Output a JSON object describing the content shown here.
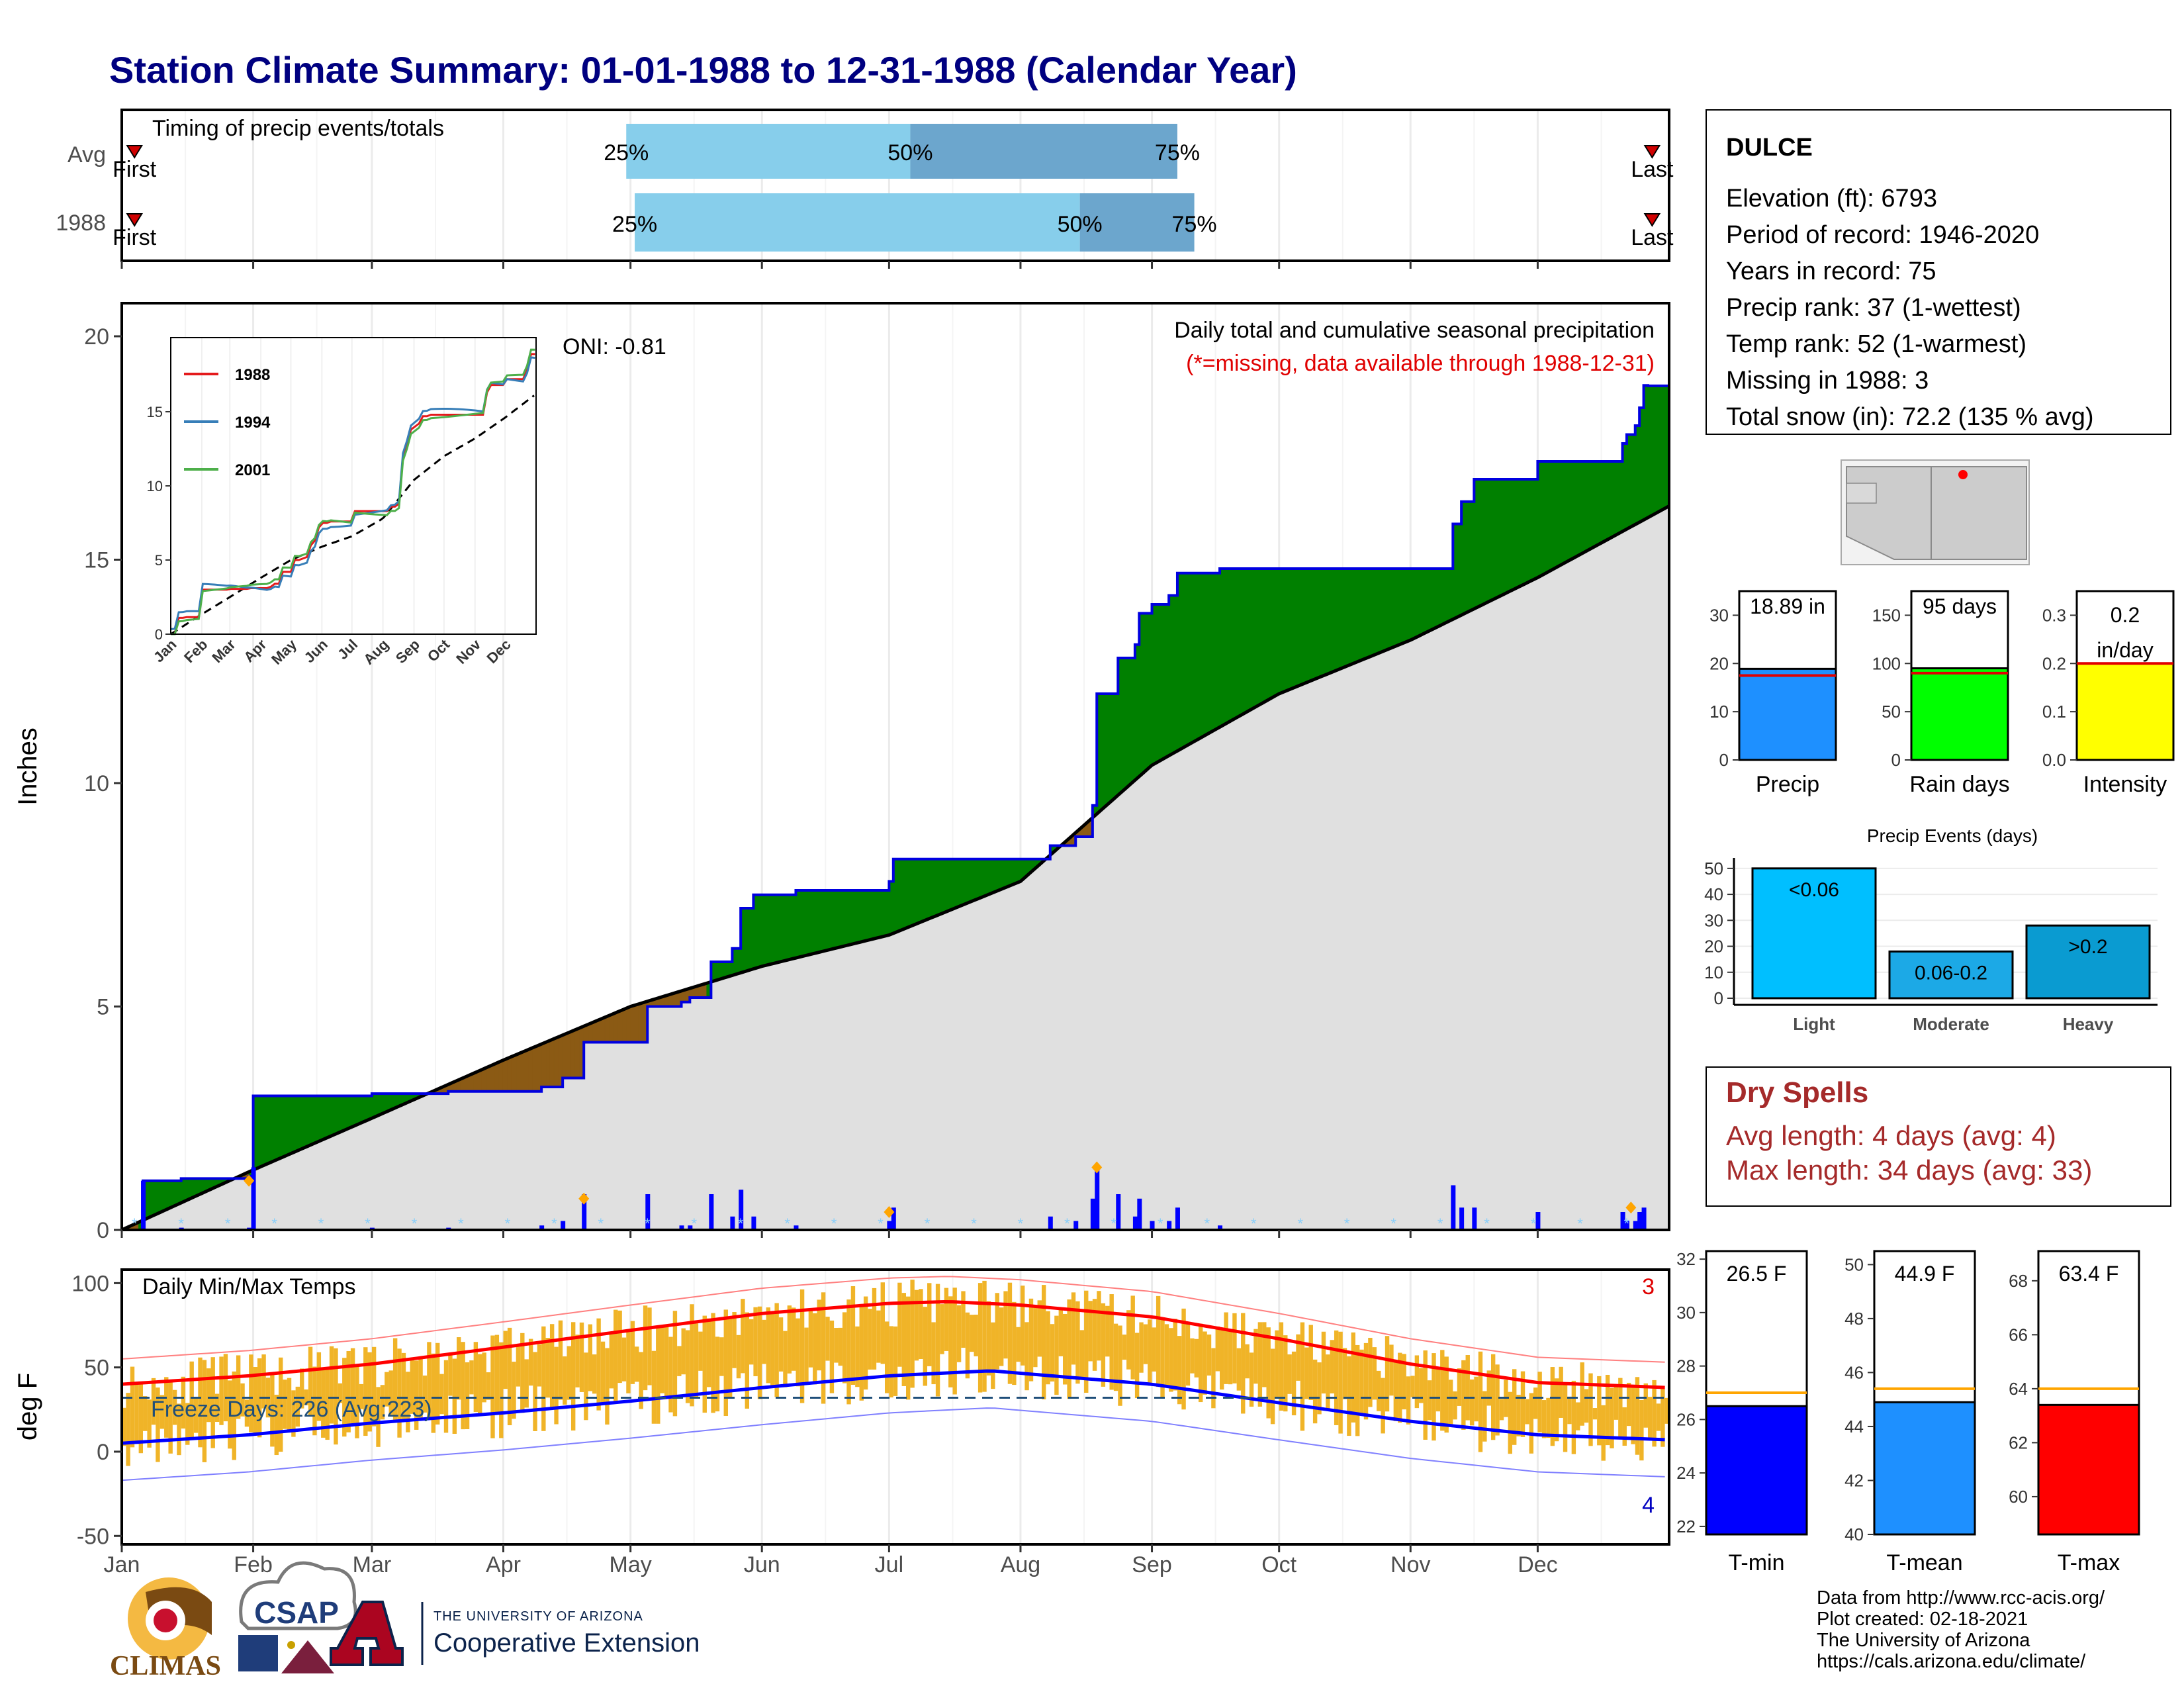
{
  "title": "Station Climate Summary: 01-01-1988 to 12-31-1988 (Calendar Year)",
  "timing_panel": {
    "label": "Timing of precip events/totals",
    "rows": [
      {
        "name": "Avg",
        "p25": "25%",
        "p50": "50%",
        "p75": "75%",
        "first": "First",
        "last": "Last",
        "q25_day": 120,
        "q50_day": 187,
        "q75_day": 250
      },
      {
        "name": "1988",
        "p25": "25%",
        "p50": "50%",
        "p75": "75%",
        "first": "First",
        "last": "Last",
        "q25_day": 122,
        "q50_day": 227,
        "q75_day": 254
      }
    ]
  },
  "station": {
    "name": "DULCE",
    "elevation": "Elevation (ft): 6793",
    "period": "Period of record: 1946-2020",
    "years": "Years in record: 75",
    "precip_rank": "Precip rank: 37 (1-wettest)",
    "temp_rank": "Temp rank: 52 (1-warmest)",
    "missing": "Missing in 1988: 3",
    "snow": "Total snow (in): 72.2 (135 % avg)"
  },
  "main_panel": {
    "ylabel": "Inches",
    "oni": "ONI: -0.81",
    "header1": "Daily total and cumulative seasonal precipitation",
    "header2": "(*=missing, data available through 1988-12-31)",
    "yticks": [
      "0",
      "5",
      "10",
      "15",
      "20"
    ],
    "months": [
      "Jan",
      "Feb",
      "Mar",
      "Apr",
      "May",
      "Jun",
      "Jul",
      "Aug",
      "Sep",
      "Oct",
      "Nov",
      "Dec"
    ]
  },
  "inset": {
    "legend": [
      "1988",
      "1994",
      "2001"
    ],
    "yticks": [
      "0",
      "5",
      "10",
      "15"
    ],
    "months": [
      "Jan",
      "Feb",
      "Mar",
      "Apr",
      "May",
      "Jun",
      "Jul",
      "Aug",
      "Sep",
      "Oct",
      "Nov",
      "Dec"
    ]
  },
  "temp_panel": {
    "ylabel": "deg F",
    "label": "Daily Min/Max Temps",
    "missing_max": "3",
    "missing_min": "4",
    "freeze": "Freeze Days: 226 (Avg:223)",
    "yticks": [
      "-50",
      "0",
      "50",
      "100"
    ]
  },
  "summary_bars": [
    {
      "name": "Precip",
      "value_label": "18.89 in",
      "value": 18.89,
      "avg": 17.5,
      "ymax": 35,
      "ticks": [
        "0",
        "10",
        "20",
        "30"
      ],
      "tick_vals": [
        0,
        10,
        20,
        30
      ],
      "color": "#1e90ff"
    },
    {
      "name": "Rain days",
      "value_label": "95 days",
      "value": 95,
      "avg": 90,
      "ymax": 175,
      "ticks": [
        "0",
        "50",
        "100",
        "150"
      ],
      "tick_vals": [
        0,
        50,
        100,
        150
      ],
      "color": "#00ff00"
    },
    {
      "name": "Intensity",
      "value_label_1": "0.2",
      "value_label_2": "in/day",
      "value": 0.2,
      "avg": 0.2,
      "ymax": 0.35,
      "ticks": [
        "0.0",
        "0.1",
        "0.2",
        "0.3"
      ],
      "tick_vals": [
        0,
        0.1,
        0.2,
        0.3
      ],
      "color": "#ffff00"
    }
  ],
  "precip_events": {
    "title": "Precip Events (days)",
    "ymax": 52,
    "yticks": [
      "0",
      "10",
      "20",
      "30",
      "40",
      "50"
    ],
    "tick_vals": [
      0,
      10,
      20,
      30,
      40,
      50
    ],
    "bars": [
      {
        "name": "Light",
        "label": "<0.06",
        "value": 50,
        "color": "#00bfff"
      },
      {
        "name": "Moderate",
        "label": "0.06-0.2",
        "value": 18,
        "color": "#1ca9e6"
      },
      {
        "name": "Heavy",
        "label": ">0.2",
        "value": 28,
        "color": "#0a9bd1"
      }
    ]
  },
  "dry_spells": {
    "title": "Dry Spells",
    "avg": "Avg length: 4 days (avg: 4)",
    "max": "Max length: 34 days (avg: 33)"
  },
  "temp_bars": [
    {
      "name": "T-min",
      "value_label": "26.5 F",
      "value": 26.5,
      "avg": 27,
      "ymin": 21.7,
      "ymax": 32.3,
      "ticks": [
        "22",
        "24",
        "26",
        "28",
        "30",
        "32"
      ],
      "tick_vals": [
        22,
        24,
        26,
        28,
        30,
        32
      ],
      "color": "#0000ff"
    },
    {
      "name": "T-mean",
      "value_label": "44.9 F",
      "value": 44.9,
      "avg": 45.4,
      "ymin": 40,
      "ymax": 50.5,
      "ticks": [
        "40",
        "42",
        "44",
        "46",
        "48",
        "50"
      ],
      "tick_vals": [
        40,
        42,
        44,
        46,
        48,
        50
      ],
      "color": "#1e90ff"
    },
    {
      "name": "T-max",
      "value_label": "63.4 F",
      "value": 63.4,
      "avg": 64,
      "ymin": 58.6,
      "ymax": 69.1,
      "ticks": [
        "60",
        "62",
        "64",
        "66",
        "68"
      ],
      "tick_vals": [
        60,
        62,
        64,
        66,
        68
      ],
      "color": "#ff0000"
    }
  ],
  "footer": {
    "source": "Data from http://www.rcc-acis.org/",
    "created": "Plot created: 02-18-2021",
    "univ": "The University of Arizona",
    "url": "https://cals.arizona.edu/climate/"
  },
  "logos": {
    "climas": "CLIMAS",
    "csap": "CSAP",
    "ua_small": "THE UNIVERSITY OF ARIZONA",
    "coop": "Cooperative Extension"
  },
  "chart_data": [
    {
      "type": "area",
      "title": "Daily total and cumulative seasonal precipitation",
      "ylabel": "Inches",
      "xlim": [
        1,
        366
      ],
      "ylim": [
        0,
        20.5
      ],
      "cumulative_1988": {
        "day": [
          1,
          6,
          15,
          31,
          32,
          60,
          78,
          100,
          105,
          110,
          125,
          133,
          135,
          140,
          145,
          147,
          150,
          160,
          182,
          183,
          220,
          226,
          230,
          231,
          236,
          240,
          241,
          244,
          248,
          250,
          260,
          275,
          291,
          310,
          315,
          317,
          320,
          335,
          350,
          355,
          356,
          358,
          359,
          360,
          361,
          366
        ],
        "value": [
          0,
          1.1,
          1.15,
          1.2,
          3.0,
          3.05,
          3.1,
          3.2,
          3.4,
          4.2,
          5.0,
          5.1,
          5.2,
          6.0,
          6.3,
          7.2,
          7.5,
          7.6,
          7.8,
          8.3,
          8.6,
          8.8,
          9.5,
          12.0,
          12.8,
          13.1,
          13.8,
          14.0,
          14.2,
          14.7,
          14.8,
          14.8,
          14.8,
          14.8,
          15.8,
          16.3,
          16.8,
          17.2,
          17.2,
          17.6,
          17.8,
          18.0,
          18.4,
          18.9,
          18.89,
          18.89
        ]
      },
      "cumulative_avg": {
        "day": [
          1,
          31,
          60,
          91,
          121,
          152,
          182,
          213,
          244,
          274,
          305,
          335,
          366
        ],
        "value": [
          0,
          1.3,
          2.5,
          3.8,
          5.0,
          5.9,
          6.6,
          7.8,
          10.4,
          12.0,
          13.2,
          14.6,
          16.2
        ]
      }
    },
    {
      "type": "line",
      "title": "Daily Min/Max Temps",
      "ylabel": "deg F",
      "ylim": [
        -55,
        108
      ],
      "avg_max": {
        "day": [
          1,
          31,
          60,
          91,
          121,
          152,
          182,
          196,
          213,
          244,
          274,
          305,
          335,
          366
        ],
        "value": [
          40,
          45,
          52,
          62,
          72,
          82,
          88,
          89,
          87,
          80,
          67,
          52,
          41,
          38
        ]
      },
      "avg_min": {
        "day": [
          1,
          31,
          60,
          91,
          121,
          152,
          182,
          206,
          244,
          274,
          305,
          335,
          366
        ],
        "value": [
          5,
          10,
          17,
          23,
          30,
          38,
          45,
          48,
          40,
          29,
          18,
          10,
          7
        ]
      }
    }
  ]
}
